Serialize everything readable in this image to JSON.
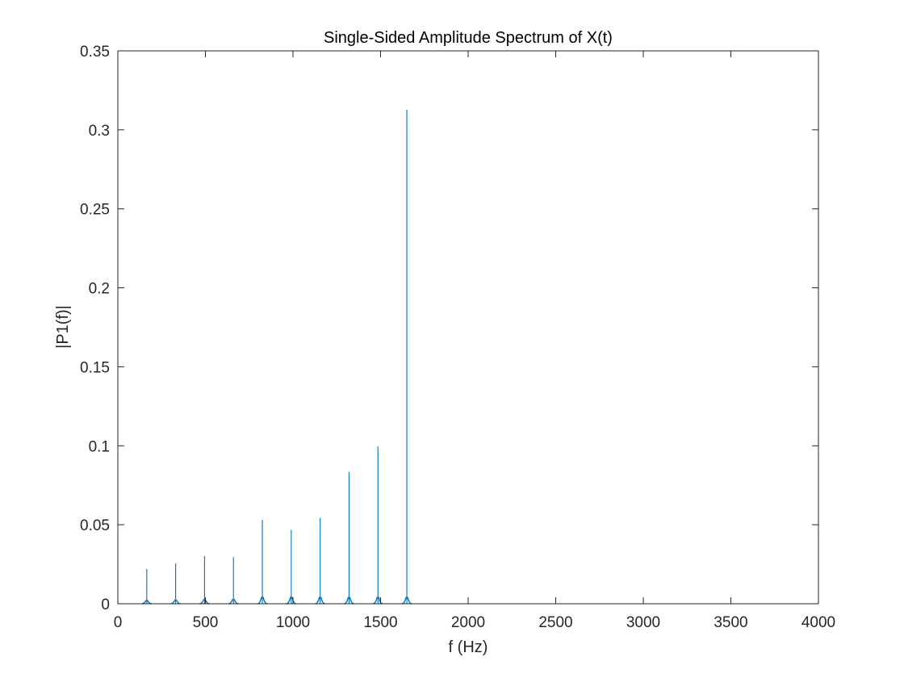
{
  "chart_data": {
    "type": "line",
    "title": "Single-Sided Amplitude Spectrum of X(t)",
    "xlabel": "f (Hz)",
    "ylabel": "|P1(f)|",
    "xlim": [
      0,
      4000
    ],
    "ylim": [
      0,
      0.35
    ],
    "x_ticks": [
      "0",
      "500",
      "1000",
      "1500",
      "2000",
      "2500",
      "3000",
      "3500",
      "4000"
    ],
    "y_ticks": [
      "0",
      "0.05",
      "0.1",
      "0.15",
      "0.2",
      "0.25",
      "0.3",
      "0.35"
    ],
    "grid": false,
    "box": true,
    "line_color": "#0072bd",
    "series": [
      {
        "peaks": [
          {
            "f": 165,
            "amplitude": 0.022
          },
          {
            "f": 330,
            "amplitude": 0.0255
          },
          {
            "f": 495,
            "amplitude": 0.0301
          },
          {
            "f": 660,
            "amplitude": 0.0295
          },
          {
            "f": 825,
            "amplitude": 0.0531
          },
          {
            "f": 990,
            "amplitude": 0.0468
          },
          {
            "f": 1155,
            "amplitude": 0.0542
          },
          {
            "f": 1320,
            "amplitude": 0.0834
          },
          {
            "f": 1485,
            "amplitude": 0.0996
          },
          {
            "f": 1650,
            "amplitude": 0.3127
          }
        ]
      }
    ]
  }
}
